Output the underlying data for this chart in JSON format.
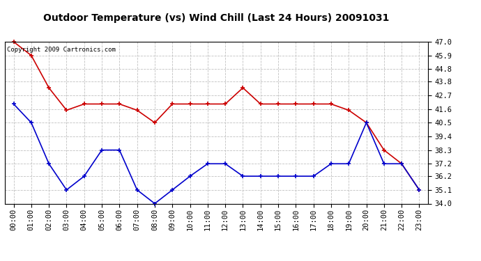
{
  "title": "Outdoor Temperature (vs) Wind Chill (Last 24 Hours) 20091031",
  "copyright_text": "Copyright 2009 Cartronics.com",
  "hours": [
    "00:00",
    "01:00",
    "02:00",
    "03:00",
    "04:00",
    "05:00",
    "06:00",
    "07:00",
    "08:00",
    "09:00",
    "10:00",
    "11:00",
    "12:00",
    "13:00",
    "14:00",
    "15:00",
    "16:00",
    "17:00",
    "18:00",
    "19:00",
    "20:00",
    "21:00",
    "22:00",
    "23:00"
  ],
  "red_temp": [
    47.0,
    45.9,
    43.3,
    41.5,
    42.0,
    42.0,
    42.0,
    41.5,
    40.5,
    42.0,
    42.0,
    42.0,
    42.0,
    43.3,
    42.0,
    42.0,
    42.0,
    42.0,
    42.0,
    41.5,
    40.5,
    38.3,
    37.2,
    35.1
  ],
  "blue_wind": [
    42.0,
    40.5,
    37.2,
    35.1,
    36.2,
    38.3,
    38.3,
    35.1,
    34.0,
    35.1,
    36.2,
    37.2,
    37.2,
    36.2,
    36.2,
    36.2,
    36.2,
    36.2,
    37.2,
    37.2,
    40.5,
    37.2,
    37.2,
    35.1
  ],
  "red_color": "#cc0000",
  "blue_color": "#0000cc",
  "bg_color": "#ffffff",
  "plot_bg_color": "#ffffff",
  "grid_color": "#c0c0c0",
  "ylim_min": 34.0,
  "ylim_max": 47.0,
  "yticks": [
    34.0,
    35.1,
    36.2,
    37.2,
    38.3,
    39.4,
    40.5,
    41.6,
    42.7,
    43.8,
    44.8,
    45.9,
    47.0
  ],
  "title_fontsize": 10,
  "tick_fontsize": 7.5,
  "marker": "+",
  "marker_size": 5,
  "line_width": 1.2
}
